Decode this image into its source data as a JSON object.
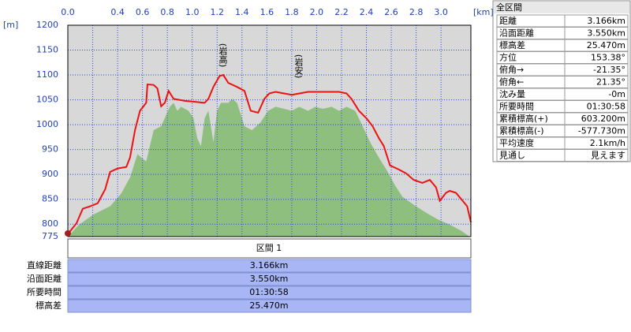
{
  "chart_data": {
    "type": "profile",
    "x_unit": "[km]",
    "y_unit": "[m]",
    "xlim": [
      0,
      3.24
    ],
    "ylim": [
      775,
      1200
    ],
    "xticks": [
      {
        "value": 0,
        "label": "0.0"
      },
      {
        "value": 0.2,
        "label": null
      },
      0.4,
      0.6,
      0.8,
      {
        "value": 1,
        "label": "1.0"
      },
      1.2,
      1.4,
      1.6,
      1.8,
      {
        "value": 2,
        "label": "2.0"
      },
      2.2,
      2.4,
      2.6,
      2.8,
      {
        "value": 3,
        "label": "3.0"
      }
    ],
    "yticks": [
      775,
      800,
      850,
      900,
      950,
      1000,
      1050,
      1100,
      1150,
      1200
    ],
    "grid": true,
    "annotations": [
      "(岩高)",
      "(岩安)"
    ],
    "series": [
      {
        "kind": "area",
        "color": "#8fbf7f",
        "x": [
          0.02,
          0.09,
          0.21,
          0.34,
          0.43,
          0.5,
          0.56,
          0.59,
          0.63,
          0.69,
          0.75,
          0.82,
          0.85,
          0.88,
          0.91,
          0.97,
          1.01,
          1.04,
          1.07,
          1.1,
          1.13,
          1.17,
          1.2,
          1.23,
          1.29,
          1.32,
          1.36,
          1.39,
          1.42,
          1.48,
          1.55,
          1.61,
          1.67,
          1.74,
          1.8,
          1.86,
          1.93,
          1.99,
          2.05,
          2.12,
          2.18,
          2.24,
          2.31,
          2.37,
          2.43,
          2.5,
          2.56,
          2.63,
          2.69,
          2.78,
          2.88,
          2.97,
          3.07,
          3.16,
          3.23
        ],
        "values": [
          780,
          799,
          820,
          836,
          862,
          894,
          941,
          934,
          926,
          989,
          997,
          1036,
          1044,
          1028,
          1036,
          1028,
          1013,
          973,
          957,
          1013,
          1028,
          965,
          1028,
          1044,
          1044,
          1052,
          1044,
          1021,
          997,
          989,
          1005,
          1028,
          1036,
          1032,
          1028,
          1036,
          1028,
          1036,
          1032,
          1036,
          1028,
          1036,
          1028,
          997,
          965,
          934,
          910,
          878,
          855,
          839,
          823,
          810,
          799,
          787,
          775
        ]
      },
      {
        "kind": "line",
        "color": "#ee1111",
        "x": [
          0,
          0.07,
          0.12,
          0.18,
          0.24,
          0.3,
          0.34,
          0.4,
          0.47,
          0.5,
          0.54,
          0.58,
          0.63,
          0.64,
          0.69,
          0.72,
          0.75,
          0.78,
          0.81,
          0.85,
          0.94,
          1.1,
          1.13,
          1.17,
          1.22,
          1.25,
          1.29,
          1.36,
          1.42,
          1.47,
          1.53,
          1.58,
          1.62,
          1.67,
          1.8,
          1.93,
          2.05,
          2.18,
          2.24,
          2.28,
          2.34,
          2.4,
          2.45,
          2.5,
          2.54,
          2.59,
          2.66,
          2.72,
          2.78,
          2.85,
          2.91,
          2.96,
          2.99,
          3.04,
          3.07,
          3.12,
          3.16,
          3.21,
          3.24
        ],
        "values": [
          780,
          802,
          831,
          836,
          842,
          870,
          905,
          912,
          915,
          934,
          989,
          1028,
          1044,
          1081,
          1080,
          1073,
          1037,
          1044,
          1068,
          1052,
          1048,
          1044,
          1052,
          1076,
          1098,
          1100,
          1084,
          1076,
          1068,
          1028,
          1024,
          1052,
          1063,
          1066,
          1060,
          1066,
          1066,
          1066,
          1063,
          1052,
          1028,
          1013,
          997,
          973,
          957,
          918,
          910,
          902,
          889,
          883,
          889,
          874,
          847,
          863,
          867,
          863,
          851,
          836,
          804
        ]
      }
    ]
  },
  "summary": {
    "title": "全区間",
    "rows": [
      [
        "距離",
        "3.166km"
      ],
      [
        "沿面距離",
        "3.550km"
      ],
      [
        "標高差",
        "25.470m"
      ],
      [
        "方位",
        "153.38°"
      ],
      [
        "俯角→",
        "-21.35°"
      ],
      [
        "俯角←",
        "21.35°"
      ],
      [
        "沈み量",
        "-0m"
      ],
      [
        "所要時間",
        "01:30:58"
      ],
      [
        "累積標高(+)",
        "603.200m"
      ],
      [
        "累積標高(-)",
        "-577.730m"
      ],
      [
        "平均速度",
        "2.1km/h"
      ],
      [
        "見通し",
        "見えます"
      ]
    ]
  },
  "section": {
    "header": "区間 1",
    "rows": [
      [
        "直線距離",
        "3.166km"
      ],
      [
        "沿面距離",
        "3.550km"
      ],
      [
        "所要時間",
        "01:30:58"
      ],
      [
        "標高差",
        "25.470m"
      ]
    ]
  }
}
